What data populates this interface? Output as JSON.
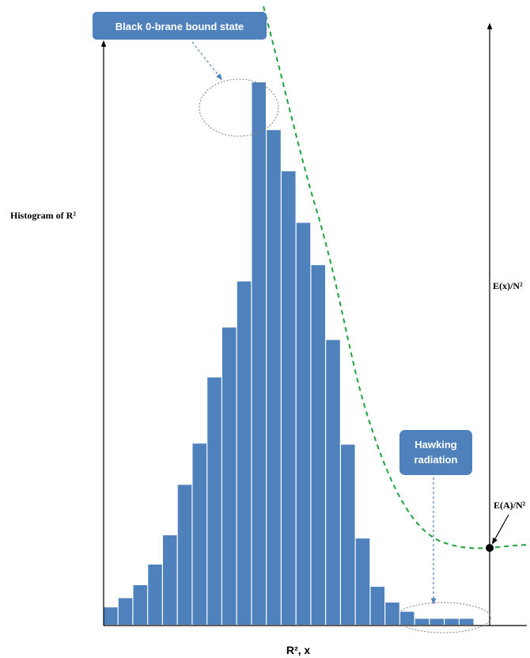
{
  "chart_data": {
    "type": "bar",
    "values": [
      3.2,
      4.9,
      7.3,
      11.1,
      16.5,
      25.8,
      33.4,
      45.6,
      54.8,
      63.3,
      100,
      91.2,
      83.6,
      74.1,
      66.3,
      52.5,
      33.2,
      15.9,
      7.0,
      4.1,
      2.4,
      1.1,
      1.1,
      1.1,
      1.1
    ],
    "ylabel_left": "Histogram of  R²",
    "ylabel_right_top": "E(x)/N²",
    "ylabel_right_mid": "E(A)/N²",
    "xlabel": "R², x",
    "bar_color": "#4F81BD",
    "curve_color": "#1FA33A",
    "annotations": [
      {
        "id": "black-brane",
        "lines": [
          "Black 0-brane  bound state"
        ]
      },
      {
        "id": "hawking",
        "lines": [
          "Hawking",
          "radiation"
        ]
      }
    ]
  }
}
